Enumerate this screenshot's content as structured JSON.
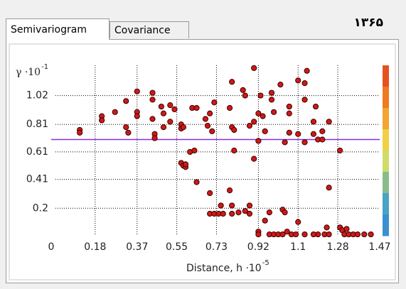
{
  "tabs": [
    "Semivariogram",
    "Covariance"
  ],
  "header": "۱۳۶۵",
  "chart_data": {
    "type": "scatter",
    "ylabel": "γ ·10",
    "ylabel_exponent": "-1",
    "xlabel": "Distance, h ·10",
    "xlabel_exponent": "-5",
    "xlim": [
      0,
      1.47
    ],
    "ylim": [
      0,
      1.24
    ],
    "xticks": [
      0,
      0.18,
      0.37,
      0.55,
      0.73,
      0.92,
      1.1,
      1.28,
      1.47
    ],
    "yticks": [
      0.2,
      0.41,
      0.61,
      0.81,
      1.02
    ],
    "grid": true,
    "color": "#d01818",
    "hline": {
      "value": 0.7,
      "color": "#8a2be2"
    },
    "colorbar": [
      "#e5521f",
      "#ee7a22",
      "#f2a530",
      "#f3cf45",
      "#cfdc6a",
      "#86bd8a",
      "#4aa3c8",
      "#3a8fd0"
    ],
    "x": [
      0.11,
      0.11,
      0.21,
      0.21,
      0.27,
      0.32,
      0.32,
      0.33,
      0.37,
      0.37,
      0.37,
      0.44,
      0.44,
      0.44,
      0.45,
      0.45,
      0.48,
      0.49,
      0.49,
      0.52,
      0.52,
      0.54,
      0.57,
      0.57,
      0.58,
      0.57,
      0.58,
      0.59,
      0.59,
      0.62,
      0.64,
      0.61,
      0.63,
      0.64,
      0.68,
      0.69,
      0.7,
      0.7,
      0.7,
      0.72,
      0.74,
      0.71,
      0.72,
      0.79,
      0.8,
      0.81,
      0.8,
      0.81,
      0.79,
      0.8,
      0.8,
      0.75,
      0.76,
      0.85,
      0.86,
      0.88,
      0.88,
      0.88,
      0.86,
      0.9,
      0.9,
      0.92,
      0.92,
      0.9,
      0.93,
      0.94,
      0.95,
      0.92,
      0.92,
      0.95,
      0.97,
      0.97,
      0.98,
      0.98,
      0.99,
      0.99,
      1.01,
      1.03,
      1.03,
      1.04,
      1.05,
      1.07,
      1.09,
      1.06,
      1.06,
      1.04,
      1.02,
      1.06,
      1.1,
      1.1,
      1.1,
      1.13,
      1.13,
      1.13,
      1.13,
      1.14,
      1.17,
      1.17,
      1.19,
      1.19,
      1.17,
      1.18,
      1.21,
      1.21,
      1.22,
      1.24,
      1.23,
      1.24,
      1.29,
      1.29,
      1.3,
      1.31,
      1.32,
      1.33,
      1.35,
      1.37,
      1.4,
      1.43,
      1.24,
      0.83
    ],
    "values": [
      0.77,
      0.75,
      0.87,
      0.84,
      0.9,
      0.98,
      0.79,
      0.75,
      1.05,
      0.9,
      0.87,
      1.04,
      0.99,
      0.85,
      0.74,
      0.71,
      0.94,
      0.79,
      0.89,
      0.95,
      0.83,
      0.92,
      0.78,
      0.81,
      0.79,
      0.53,
      0.51,
      0.5,
      0.52,
      0.93,
      0.93,
      0.61,
      0.62,
      0.39,
      0.85,
      0.8,
      0.89,
      0.31,
      0.16,
      0.16,
      0.16,
      0.76,
      0.97,
      0.93,
      0.79,
      0.62,
      1.12,
      0.77,
      0.33,
      0.22,
      0.16,
      0.22,
      0.16,
      1.06,
      1.02,
      0.8,
      0.22,
      0.16,
      0.18,
      1.22,
      0.83,
      0.89,
      0.69,
      0.56,
      1.02,
      0.87,
      0.76,
      0.03,
      0.01,
      0.11,
      0.01,
      0.17,
      1.04,
      0.99,
      0.9,
      0.01,
      0.01,
      0.01,
      0.19,
      0.17,
      0.03,
      0.01,
      0.01,
      0.89,
      0.75,
      0.68,
      1.1,
      0.94,
      1.13,
      0.74,
      0.1,
      0.99,
      1.11,
      0.68,
      0.01,
      1.2,
      0.83,
      0.74,
      0.7,
      0.01,
      0.01,
      0.94,
      0.7,
      0.76,
      0.01,
      0.01,
      0.06,
      0.35,
      0.62,
      0.06,
      0.04,
      0.01,
      0.05,
      0.01,
      0.01,
      0.01,
      0.01,
      0.01,
      0.83,
      0.17
    ]
  }
}
